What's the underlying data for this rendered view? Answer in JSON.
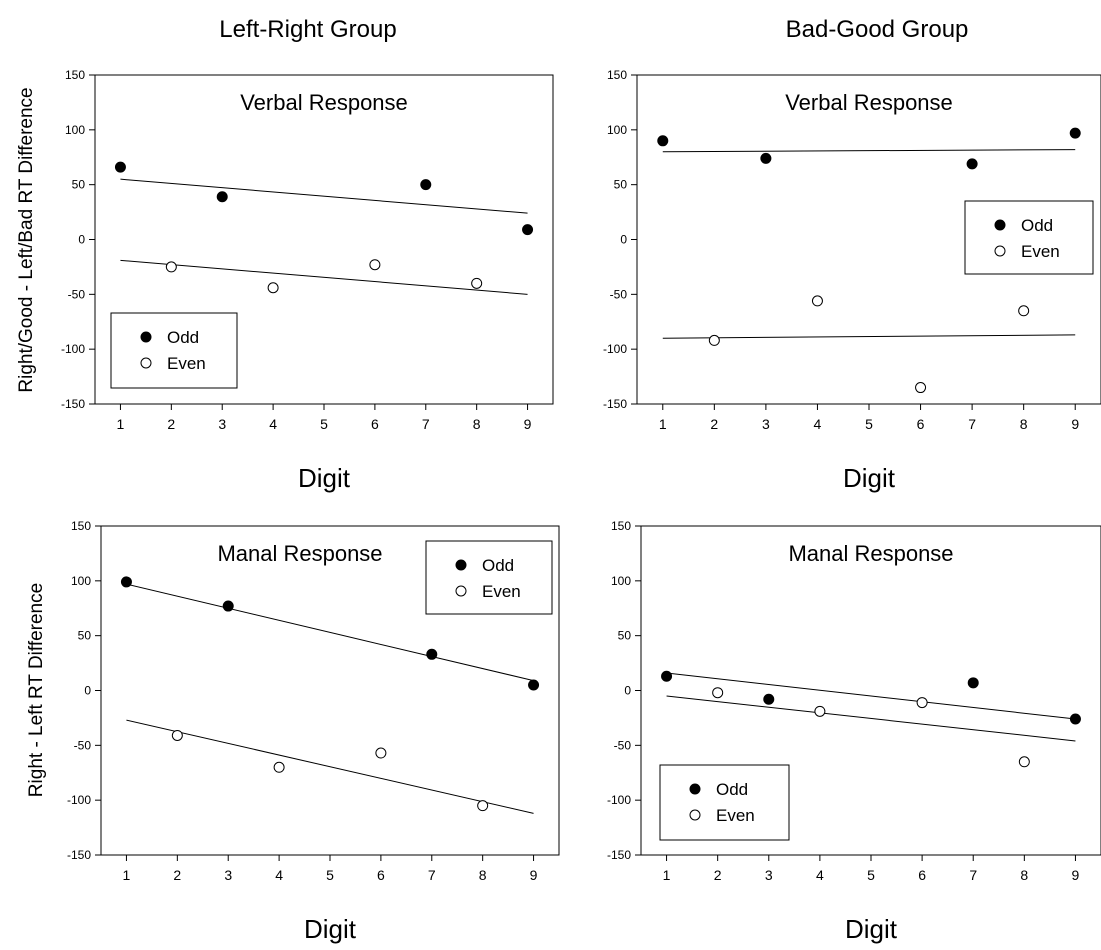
{
  "column_titles": [
    "Left-Right Group",
    "Bad-Good Group"
  ],
  "row_ylabels": [
    "Right/Good - Left/Bad RT Difference",
    "Right - Left RT Difference"
  ],
  "colors": {
    "axis": "#000000",
    "odd_fill": "#000000",
    "even_fill": "#ffffff"
  },
  "chart_data": [
    {
      "type": "scatter",
      "title": "Verbal Response",
      "xlabel": "Digit",
      "ylabel": "Right/Good - Left/Bad RT Difference",
      "xlim": [
        0.5,
        9.5
      ],
      "ylim": [
        -150,
        150
      ],
      "xticks": [
        1,
        2,
        3,
        4,
        5,
        6,
        7,
        8,
        9
      ],
      "yticks": [
        -150,
        -100,
        -50,
        0,
        50,
        100,
        150
      ],
      "legend": "bottom-left",
      "series": [
        {
          "name": "Odd",
          "marker": "filled",
          "x": [
            1,
            3,
            7,
            9
          ],
          "y": [
            66,
            39,
            50,
            9
          ],
          "fit": [
            [
              1,
              55
            ],
            [
              9,
              24
            ]
          ]
        },
        {
          "name": "Even",
          "marker": "open",
          "x": [
            2,
            4,
            6,
            8
          ],
          "y": [
            -25,
            -44,
            -23,
            -40
          ],
          "fit": [
            [
              1,
              -19
            ],
            [
              9,
              -50
            ]
          ]
        }
      ]
    },
    {
      "type": "scatter",
      "title": "Verbal Response",
      "xlabel": "Digit",
      "ylabel": "",
      "xlim": [
        0.5,
        9.5
      ],
      "ylim": [
        -150,
        150
      ],
      "xticks": [
        1,
        2,
        3,
        4,
        5,
        6,
        7,
        8,
        9
      ],
      "yticks": [
        -150,
        -100,
        -50,
        0,
        50,
        100,
        150
      ],
      "legend": "center-right",
      "series": [
        {
          "name": "Odd",
          "marker": "filled",
          "x": [
            1,
            3,
            7,
            9
          ],
          "y": [
            90,
            74,
            69,
            97
          ],
          "fit": [
            [
              1,
              80
            ],
            [
              9,
              82
            ]
          ]
        },
        {
          "name": "Even",
          "marker": "open",
          "x": [
            2,
            4,
            6,
            8
          ],
          "y": [
            -92,
            -56,
            -135,
            -65
          ],
          "fit": [
            [
              1,
              -90
            ],
            [
              9,
              -87
            ]
          ]
        }
      ]
    },
    {
      "type": "scatter",
      "title": "Manal Response",
      "xlabel": "Digit",
      "ylabel": "Right - Left RT Difference",
      "xlim": [
        0.5,
        9.5
      ],
      "ylim": [
        -150,
        150
      ],
      "xticks": [
        1,
        2,
        3,
        4,
        5,
        6,
        7,
        8,
        9
      ],
      "yticks": [
        -150,
        -100,
        -50,
        0,
        50,
        100,
        150
      ],
      "legend": "top-right",
      "series": [
        {
          "name": "Odd",
          "marker": "filled",
          "x": [
            1,
            3,
            7,
            9
          ],
          "y": [
            99,
            77,
            33,
            5
          ],
          "fit": [
            [
              1,
              97
            ],
            [
              9,
              9
            ]
          ]
        },
        {
          "name": "Even",
          "marker": "open",
          "x": [
            2,
            4,
            6,
            8
          ],
          "y": [
            -41,
            -70,
            -57,
            -105
          ],
          "fit": [
            [
              1,
              -27
            ],
            [
              9,
              -112
            ]
          ]
        }
      ]
    },
    {
      "type": "scatter",
      "title": "Manal Response",
      "xlabel": "Digit",
      "ylabel": "",
      "xlim": [
        0.5,
        9.5
      ],
      "ylim": [
        -150,
        150
      ],
      "xticks": [
        1,
        2,
        3,
        4,
        5,
        6,
        7,
        8,
        9
      ],
      "yticks": [
        -150,
        -100,
        -50,
        0,
        50,
        100,
        150
      ],
      "legend": "bottom-left",
      "series": [
        {
          "name": "Odd",
          "marker": "filled",
          "x": [
            1,
            3,
            7,
            9
          ],
          "y": [
            13,
            -8,
            7,
            -26
          ],
          "fit": [
            [
              1,
              16
            ],
            [
              9,
              -26
            ]
          ]
        },
        {
          "name": "Even",
          "marker": "open",
          "x": [
            2,
            4,
            6,
            8
          ],
          "y": [
            -2,
            -19,
            -11,
            -65
          ],
          "fit": [
            [
              1,
              -5
            ],
            [
              9,
              -46
            ]
          ]
        }
      ]
    }
  ]
}
